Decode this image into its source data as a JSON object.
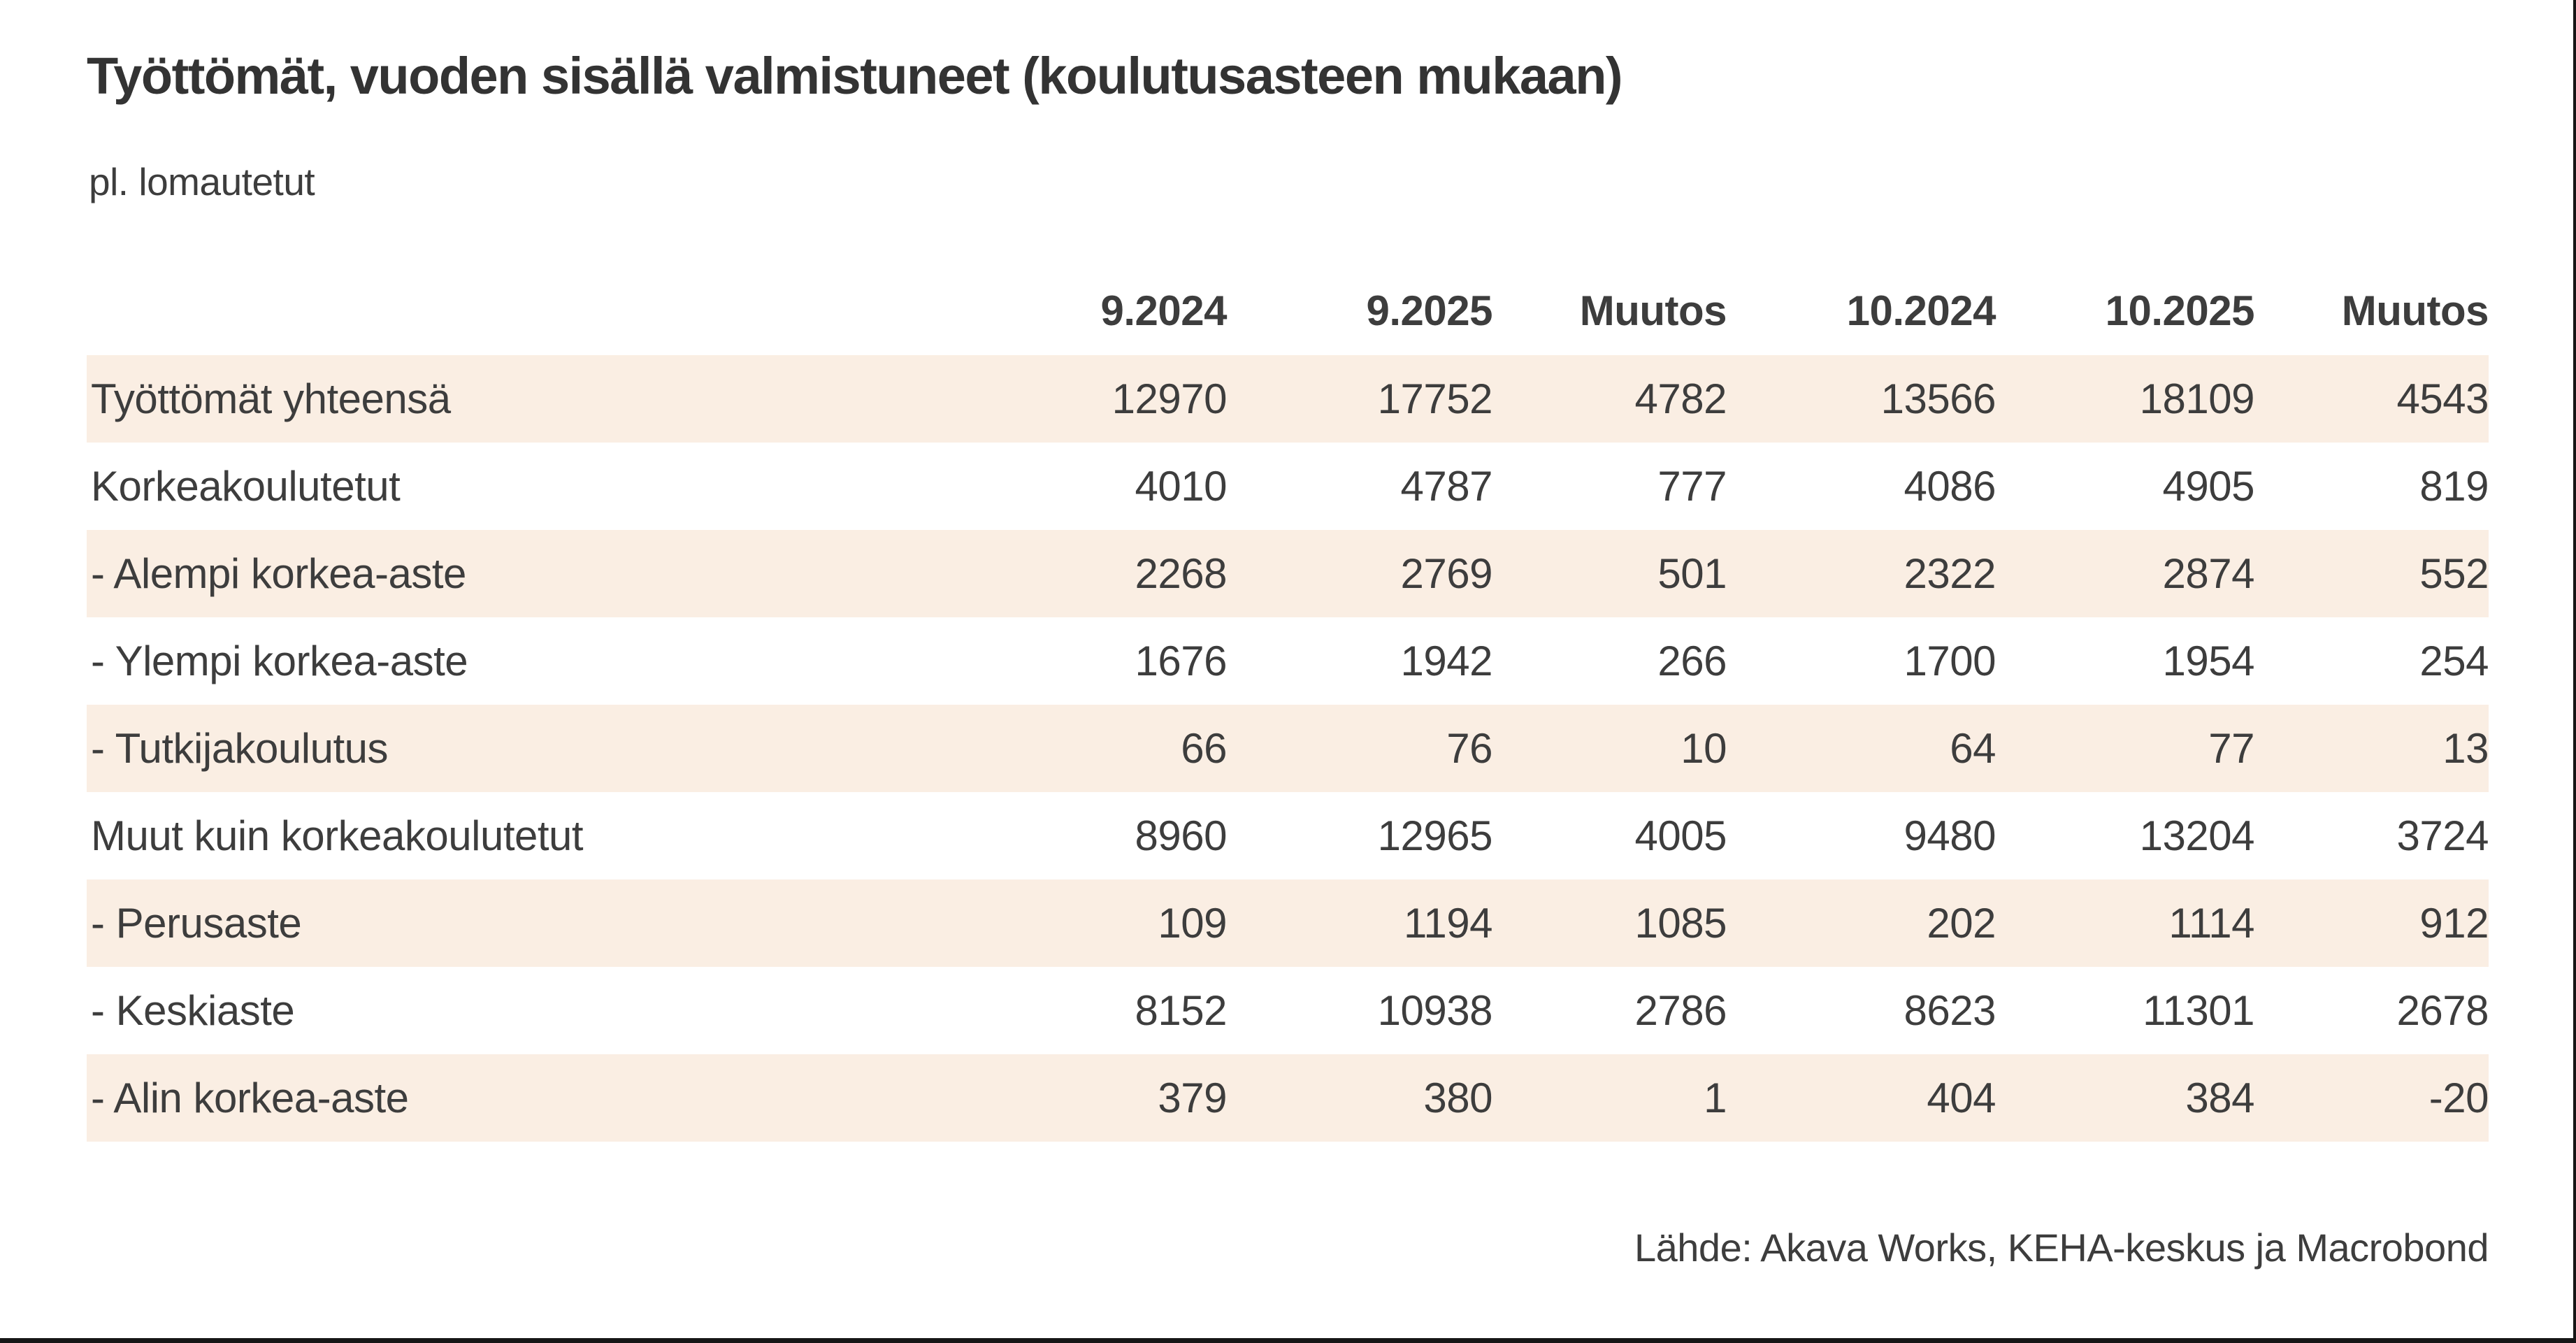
{
  "colors": {
    "stripe_background": "#faeee3",
    "text": "#3d3d3d",
    "edge_bar": "#161616",
    "page_background": "#ffffff"
  },
  "chart_data": {
    "type": "table",
    "title": "Työttömät, vuoden sisällä valmistuneet (koulutusasteen mukaan)",
    "subtitle": "pl. lomautetut",
    "source": "Lähde: Akava Works, KEHA-keskus ja Macrobond",
    "columns": [
      "9.2024",
      "9.2025",
      "Muutos",
      "10.2024",
      "10.2025",
      "Muutos"
    ],
    "rows": [
      {
        "label": "Työttömät yhteensä",
        "values": [
          12970,
          17752,
          4782,
          13566,
          18109,
          4543
        ]
      },
      {
        "label": "Korkeakoulutetut",
        "values": [
          4010,
          4787,
          777,
          4086,
          4905,
          819
        ]
      },
      {
        "label": "- Alempi korkea-aste",
        "values": [
          2268,
          2769,
          501,
          2322,
          2874,
          552
        ]
      },
      {
        "label": "- Ylempi korkea-aste",
        "values": [
          1676,
          1942,
          266,
          1700,
          1954,
          254
        ]
      },
      {
        "label": "- Tutkijakoulutus",
        "values": [
          66,
          76,
          10,
          64,
          77,
          13
        ]
      },
      {
        "label": "Muut kuin korkeakoulutetut",
        "values": [
          8960,
          12965,
          4005,
          9480,
          13204,
          3724
        ]
      },
      {
        "label": "- Perusaste",
        "values": [
          109,
          1194,
          1085,
          202,
          1114,
          912
        ]
      },
      {
        "label": "- Keskiaste",
        "values": [
          8152,
          10938,
          2786,
          8623,
          11301,
          2678
        ]
      },
      {
        "label": "- Alin korkea-aste",
        "values": [
          379,
          380,
          1,
          404,
          384,
          -20
        ]
      }
    ],
    "layout": {
      "stripe_rows": [
        1,
        3,
        5,
        7,
        9
      ],
      "grid": "off",
      "value_alignment": "right"
    }
  }
}
